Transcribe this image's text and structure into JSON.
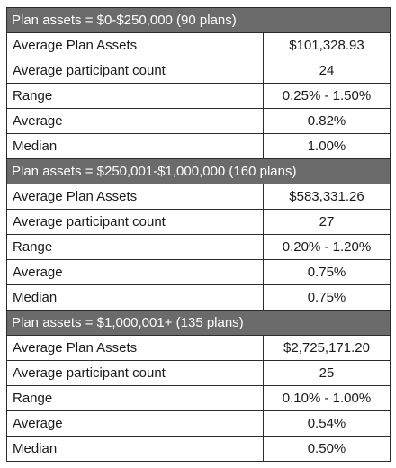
{
  "sections": [
    {
      "header": "Plan assets = $0-$250,000 (90 plans)",
      "rows": [
        {
          "label": "Average Plan Assets",
          "value": "$101,328.93"
        },
        {
          "label": "Average participant count",
          "value": "24"
        },
        {
          "label": "Range",
          "value": "0.25% - 1.50%"
        },
        {
          "label": "Average",
          "value": "0.82%"
        },
        {
          "label": "Median",
          "value": "1.00%"
        }
      ]
    },
    {
      "header": "Plan assets = $250,001-$1,000,000 (160 plans)",
      "rows": [
        {
          "label": "Average Plan Assets",
          "value": "$583,331.26"
        },
        {
          "label": "Average participant count",
          "value": "27"
        },
        {
          "label": "Range",
          "value": "0.20% - 1.20%"
        },
        {
          "label": "Average",
          "value": "0.75%"
        },
        {
          "label": "Median",
          "value": "0.75%"
        }
      ]
    },
    {
      "header": "Plan assets = $1,000,001+ (135 plans)",
      "rows": [
        {
          "label": "Average Plan Assets",
          "value": "$2,725,171.20"
        },
        {
          "label": "Average participant count",
          "value": "25"
        },
        {
          "label": "Range",
          "value": "0.10% - 1.00%"
        },
        {
          "label": "Average",
          "value": "0.54%"
        },
        {
          "label": "Median",
          "value": "0.50%"
        }
      ]
    }
  ],
  "colors": {
    "header_bg": "#6b6b6b",
    "header_text": "#ffffff",
    "border": "#2b2b2b"
  }
}
